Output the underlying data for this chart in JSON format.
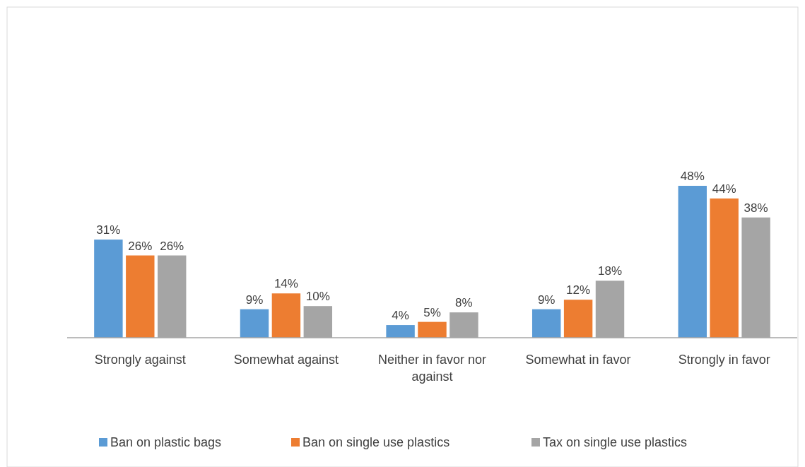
{
  "chart_data": {
    "type": "bar",
    "categories": [
      "Strongly against",
      "Somewhat against",
      "Neither in favor nor against",
      "Somewhat in favor",
      "Strongly in favor"
    ],
    "series": [
      {
        "name": "Ban on plastic bags",
        "color": "#5b9bd5",
        "values": [
          31,
          9,
          4,
          9,
          48
        ],
        "value_labels": [
          "31%",
          "9%",
          "4%",
          "9%",
          "48%"
        ]
      },
      {
        "name": "Ban on single use plastics",
        "color": "#ed7d31",
        "values": [
          26,
          14,
          5,
          12,
          44
        ],
        "value_labels": [
          "26%",
          "14%",
          "5%",
          "12%",
          "44%"
        ]
      },
      {
        "name": "Tax on single use plastics",
        "color": "#a5a5a5",
        "values": [
          26,
          10,
          8,
          18,
          38
        ],
        "value_labels": [
          "26%",
          "10%",
          "8%",
          "18%",
          "38%"
        ]
      }
    ],
    "legend": "bottom"
  }
}
